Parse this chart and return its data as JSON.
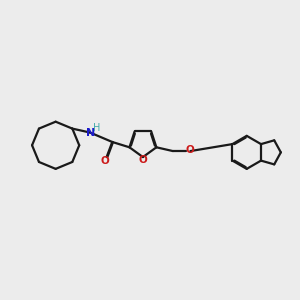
{
  "bg_color": "#ececec",
  "bond_color": "#1a1a1a",
  "N_color": "#1a1acc",
  "O_color": "#cc1a1a",
  "H_color": "#44aaaa",
  "lw": 1.6,
  "dbo": 0.018,
  "xlim": [
    -3.3,
    3.0
  ],
  "ylim": [
    -1.1,
    1.0
  ],
  "figsize": [
    3.0,
    3.0
  ],
  "dpi": 100
}
